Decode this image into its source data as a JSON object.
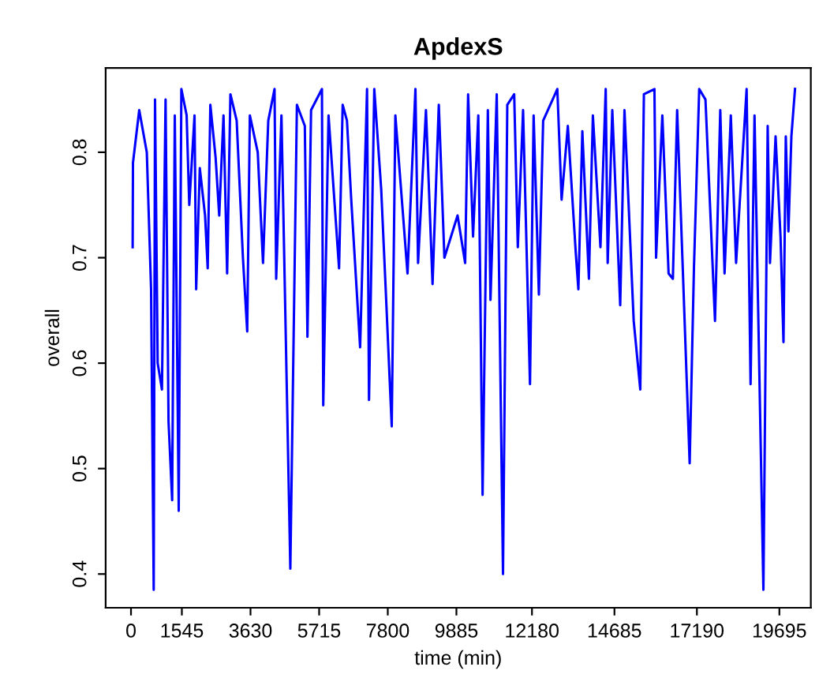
{
  "chart_data": {
    "type": "line",
    "title": "ApdexS",
    "xlabel": "time (min)",
    "ylabel": "overall",
    "xlim": [
      -770,
      20650
    ],
    "ylim": [
      0.368,
      0.88
    ],
    "xticks": [
      0,
      1545,
      3630,
      5715,
      7800,
      9885,
      12180,
      14685,
      17190,
      19695
    ],
    "yticks": [
      0.4,
      0.5,
      0.6,
      0.7,
      0.8
    ],
    "grid": false,
    "marker": "none",
    "line_style": "solid",
    "series": [
      {
        "color": "#0000ff",
        "x": [
          50,
          60,
          250,
          480,
          610,
          690,
          730,
          810,
          940,
          1050,
          1140,
          1250,
          1330,
          1450,
          1530,
          1690,
          1770,
          1930,
          1980,
          2090,
          2250,
          2330,
          2410,
          2570,
          2680,
          2810,
          2920,
          3020,
          3210,
          3400,
          3530,
          3610,
          3850,
          4010,
          4170,
          4360,
          4410,
          4570,
          4840,
          5040,
          5280,
          5360,
          5470,
          5800,
          5840,
          6000,
          6320,
          6430,
          6560,
          6690,
          6960,
          7170,
          7230,
          7390,
          7600,
          7730,
          7920,
          8030,
          8400,
          8640,
          8720,
          8960,
          9160,
          9350,
          9520,
          9920,
          10150,
          10240,
          10390,
          10550,
          10680,
          10840,
          10920,
          11110,
          11300,
          11430,
          11640,
          11750,
          11910,
          12120,
          12230,
          12390,
          12520,
          12950,
          13080,
          13270,
          13510,
          13590,
          13710,
          13910,
          14030,
          14260,
          14420,
          14480,
          14620,
          14860,
          14990,
          15270,
          15470,
          15580,
          15900,
          15950,
          16140,
          16330,
          16460,
          16590,
          16970,
          17100,
          17260,
          17450,
          17740,
          17900,
          18030,
          18220,
          18380,
          18700,
          18820,
          18940,
          19210,
          19340,
          19410,
          19580,
          19730,
          19820,
          19890,
          19970,
          20060,
          20170
        ],
        "values": [
          0.71,
          0.79,
          0.84,
          0.8,
          0.67,
          0.385,
          0.85,
          0.6,
          0.575,
          0.85,
          0.545,
          0.47,
          0.835,
          0.46,
          0.86,
          0.835,
          0.75,
          0.835,
          0.67,
          0.785,
          0.74,
          0.69,
          0.845,
          0.795,
          0.74,
          0.835,
          0.685,
          0.855,
          0.83,
          0.7,
          0.63,
          0.835,
          0.8,
          0.695,
          0.83,
          0.86,
          0.68,
          0.835,
          0.405,
          0.845,
          0.825,
          0.625,
          0.84,
          0.86,
          0.56,
          0.835,
          0.69,
          0.845,
          0.83,
          0.755,
          0.615,
          0.86,
          0.565,
          0.86,
          0.765,
          0.675,
          0.54,
          0.835,
          0.685,
          0.86,
          0.695,
          0.84,
          0.675,
          0.845,
          0.7,
          0.74,
          0.695,
          0.855,
          0.72,
          0.835,
          0.475,
          0.84,
          0.66,
          0.855,
          0.4,
          0.845,
          0.855,
          0.71,
          0.84,
          0.58,
          0.835,
          0.665,
          0.83,
          0.86,
          0.755,
          0.825,
          0.705,
          0.67,
          0.82,
          0.68,
          0.835,
          0.71,
          0.86,
          0.695,
          0.84,
          0.655,
          0.84,
          0.64,
          0.575,
          0.855,
          0.86,
          0.7,
          0.835,
          0.685,
          0.68,
          0.84,
          0.505,
          0.69,
          0.86,
          0.85,
          0.64,
          0.84,
          0.685,
          0.835,
          0.695,
          0.86,
          0.58,
          0.835,
          0.385,
          0.825,
          0.695,
          0.815,
          0.72,
          0.62,
          0.815,
          0.725,
          0.815,
          0.86
        ]
      }
    ]
  }
}
